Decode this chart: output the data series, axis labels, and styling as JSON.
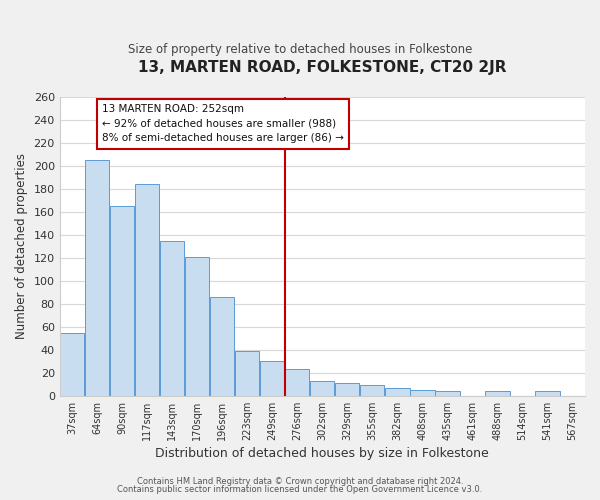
{
  "title": "13, MARTEN ROAD, FOLKESTONE, CT20 2JR",
  "subtitle": "Size of property relative to detached houses in Folkestone",
  "xlabel": "Distribution of detached houses by size in Folkestone",
  "ylabel": "Number of detached properties",
  "bar_labels": [
    "37sqm",
    "64sqm",
    "90sqm",
    "117sqm",
    "143sqm",
    "170sqm",
    "196sqm",
    "223sqm",
    "249sqm",
    "276sqm",
    "302sqm",
    "329sqm",
    "355sqm",
    "382sqm",
    "408sqm",
    "435sqm",
    "461sqm",
    "488sqm",
    "514sqm",
    "541sqm",
    "567sqm"
  ],
  "bar_values": [
    55,
    205,
    165,
    184,
    135,
    121,
    86,
    39,
    30,
    23,
    13,
    11,
    9,
    7,
    5,
    4,
    0,
    4,
    0,
    4,
    0
  ],
  "bar_color": "#c9ddf0",
  "bar_edge_color": "#5b9bd5",
  "vline_x": 8.5,
  "vline_color": "#c00000",
  "annotation_text": "13 MARTEN ROAD: 252sqm\n← 92% of detached houses are smaller (988)\n8% of semi-detached houses are larger (86) →",
  "annotation_box_color": "#ffffff",
  "annotation_box_edge": "#c00000",
  "ylim": [
    0,
    260
  ],
  "yticks": [
    0,
    20,
    40,
    60,
    80,
    100,
    120,
    140,
    160,
    180,
    200,
    220,
    240,
    260
  ],
  "footer_line1": "Contains HM Land Registry data © Crown copyright and database right 2024.",
  "footer_line2": "Contains public sector information licensed under the Open Government Licence v3.0.",
  "fig_bg_color": "#f0f0f0",
  "plot_bg_color": "#ffffff",
  "grid_color": "#d8d8d8"
}
